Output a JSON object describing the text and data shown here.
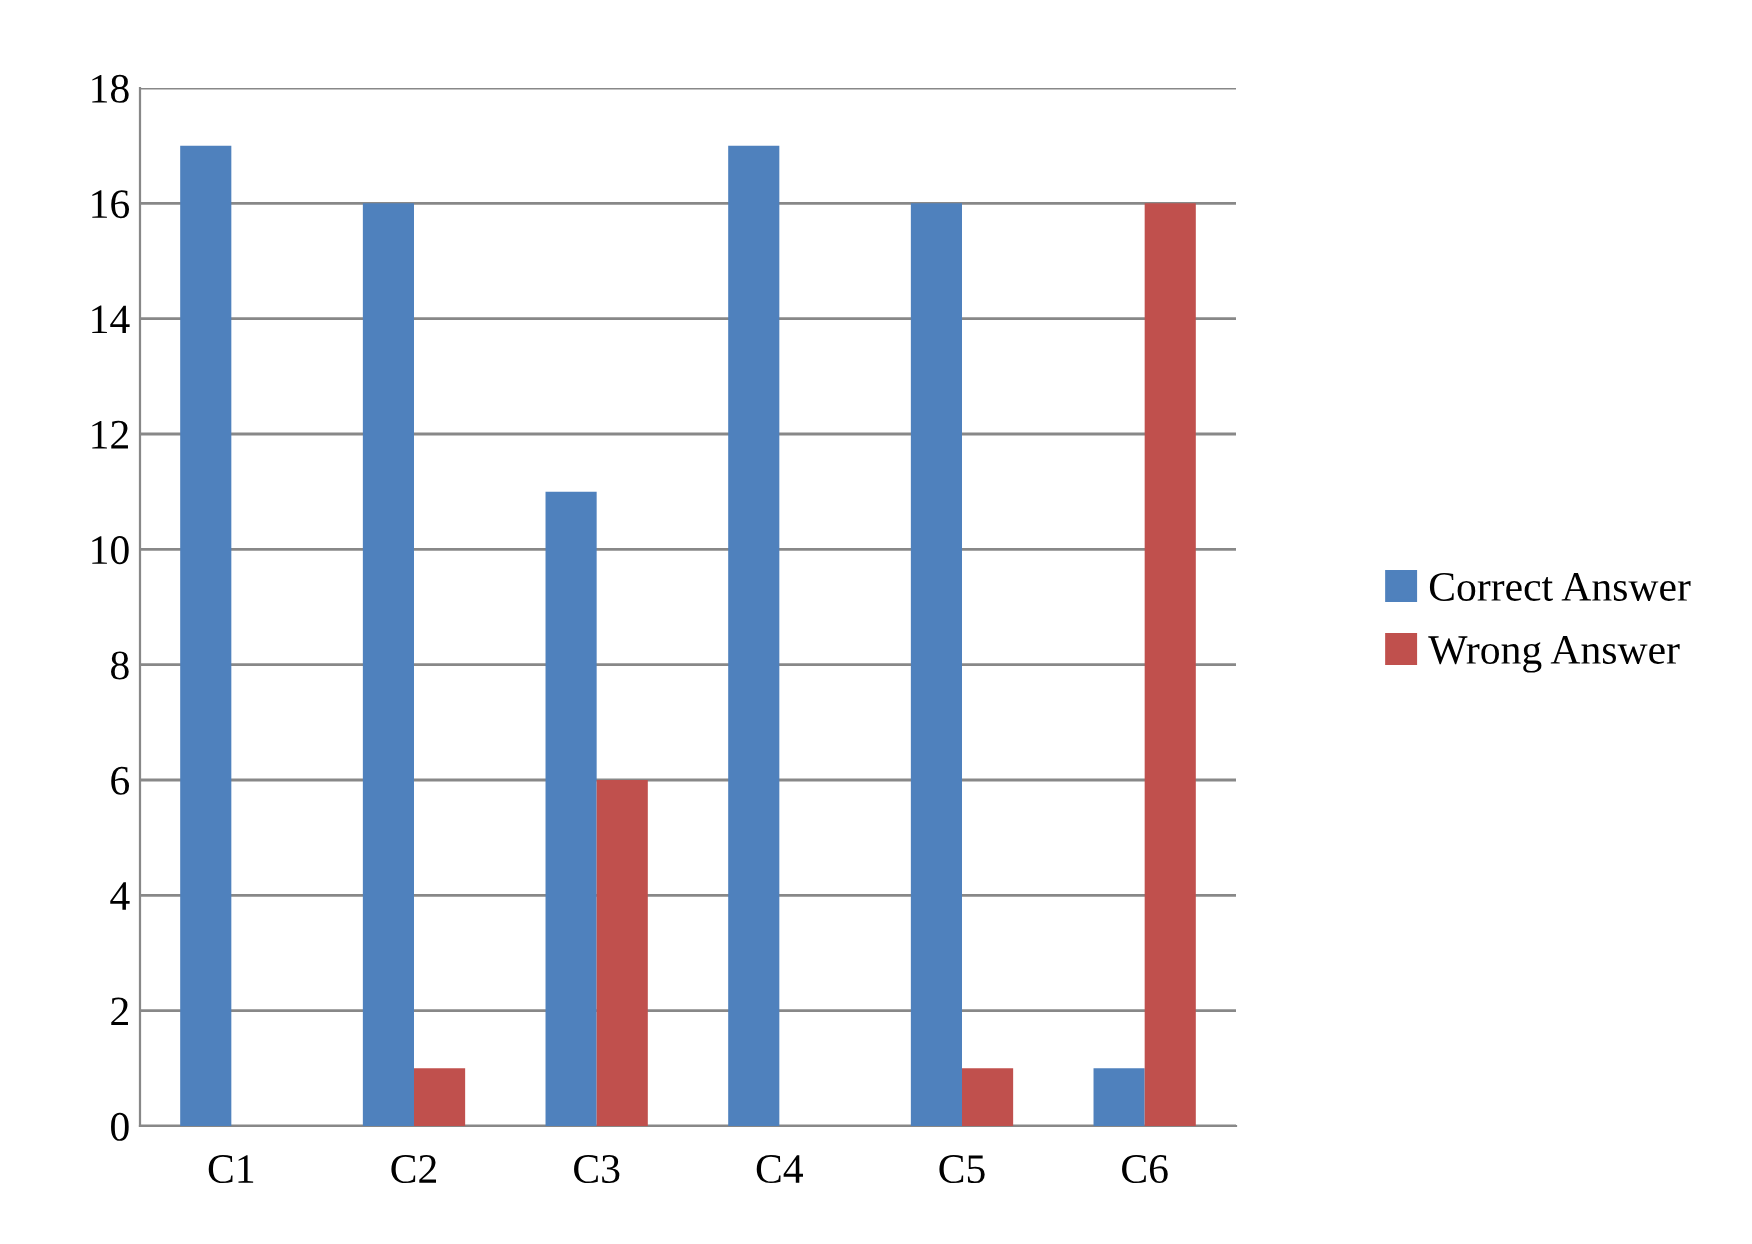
{
  "chart_data": {
    "type": "bar",
    "categories": [
      "C1",
      "C2",
      "C3",
      "C4",
      "C5",
      "C6"
    ],
    "series": [
      {
        "name": "Correct Answer",
        "color": "#4f81bd",
        "values": [
          17,
          16,
          11,
          17,
          16,
          1
        ]
      },
      {
        "name": "Wrong Answer",
        "color": "#c0504d",
        "values": [
          0,
          1,
          6,
          0,
          1,
          16
        ]
      }
    ],
    "ylim": [
      0,
      18
    ],
    "yticks": [
      0,
      2,
      4,
      6,
      8,
      10,
      12,
      14,
      16,
      18
    ],
    "grid": "y",
    "legend": "right"
  }
}
